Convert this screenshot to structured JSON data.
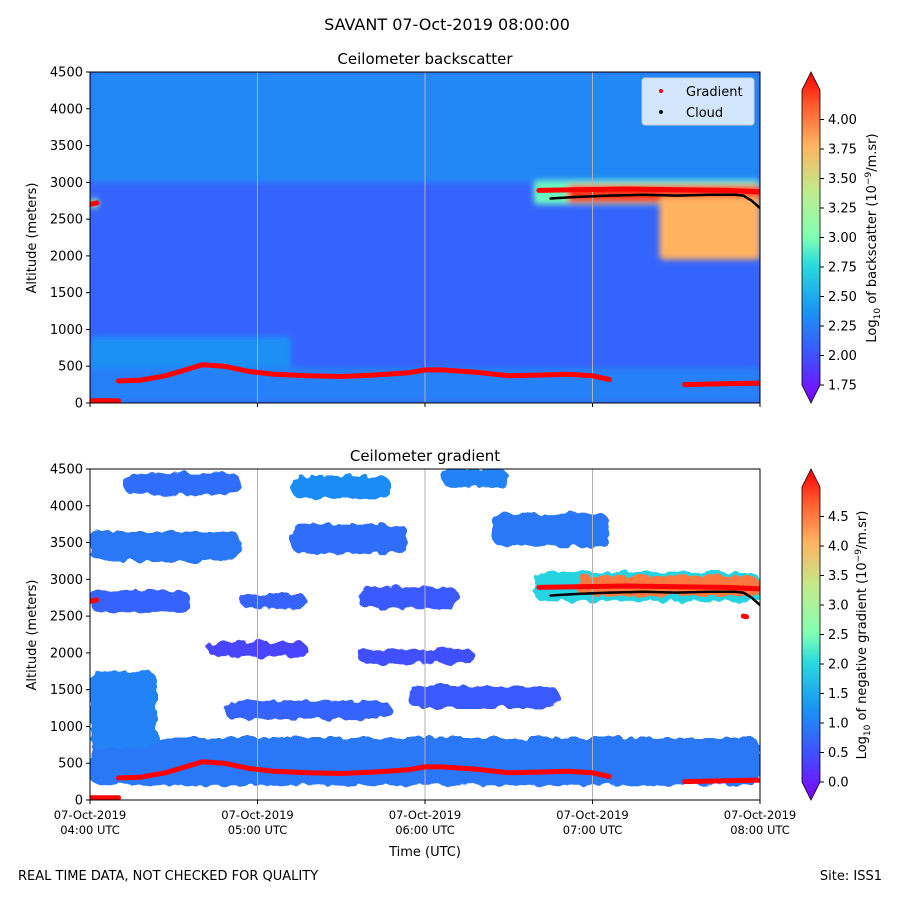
{
  "suptitle": "SAVANT 07-Oct-2019 08:00:00",
  "footer": {
    "left": "REAL TIME DATA, NOT CHECKED FOR QUALITY",
    "right": "Site: ISS1"
  },
  "colors": {
    "gradient_marker": "#ff0000",
    "cloud_marker": "#000000",
    "grid": "#b0b0b0"
  },
  "chart_data": [
    {
      "type": "heatmap",
      "title": "Ceilometer backscatter",
      "ylabel": "Altitude (meters)",
      "ylim": [
        0,
        4500
      ],
      "yticks": [
        0,
        500,
        1000,
        1500,
        2000,
        2500,
        3000,
        3500,
        4000,
        4500
      ],
      "xlim_hours": [
        4,
        8
      ],
      "xticks_hours": [
        4,
        5,
        6,
        7,
        8
      ],
      "xtick_labels_visible": false,
      "colorbar": {
        "label_parts": [
          "Log",
          "10",
          " of backscatter (10",
          "−9",
          "/m.sr)"
        ],
        "range": [
          1.75,
          4.25
        ],
        "ticks": [
          "1.75",
          "2.00",
          "2.25",
          "2.50",
          "2.75",
          "3.00",
          "3.25",
          "3.50",
          "3.75",
          "4.00"
        ]
      },
      "legend": {
        "placement": "top-right",
        "entries": [
          {
            "label": "Gradient",
            "color": "#ff0000"
          },
          {
            "label": "Cloud",
            "color": "#000000"
          }
        ]
      },
      "background_log10": 2.2,
      "field_log10": [
        {
          "name": "upper-haze",
          "t": [
            4.0,
            8.0
          ],
          "alt": [
            3000,
            4500
          ],
          "value": 2.38
        },
        {
          "name": "morning-haze",
          "t": [
            4.0,
            5.2
          ],
          "alt": [
            0,
            900
          ],
          "value": 2.42
        },
        {
          "name": "boundary-layer",
          "t": [
            4.0,
            8.0
          ],
          "alt": [
            0,
            480
          ],
          "value": 2.34
        },
        {
          "name": "early-cloud",
          "t": [
            4.0,
            4.05
          ],
          "alt": [
            2650,
            2780
          ],
          "value": 3.3
        },
        {
          "name": "cloud-halo",
          "t": [
            6.65,
            8.0
          ],
          "alt": [
            2700,
            3020
          ],
          "value": 2.95
        },
        {
          "name": "cloud-core",
          "t": [
            6.85,
            8.0
          ],
          "alt": [
            2720,
            2960
          ],
          "value": 4.1
        },
        {
          "name": "cloud-fallstreak",
          "t": [
            7.4,
            8.0
          ],
          "alt": [
            1950,
            2800
          ],
          "value": 3.7
        }
      ],
      "series": [
        {
          "name": "Gradient",
          "color": "#ff0000",
          "segments": [
            {
              "t": [
                4.0,
                4.17
              ],
              "alt": [
                30,
                30
              ]
            },
            {
              "t": [
                4.0,
                4.04
              ],
              "alt": [
                2700,
                2720
              ]
            },
            {
              "t": [
                4.17,
                4.3,
                4.45,
                4.6,
                4.67,
                4.8,
                4.95,
                5.1,
                5.3,
                5.5,
                5.7,
                5.9,
                6.0,
                6.1,
                6.3,
                6.5,
                6.7,
                6.85,
                7.0,
                7.1
              ],
              "alt": [
                300,
                310,
                370,
                470,
                520,
                500,
                430,
                390,
                370,
                360,
                380,
                410,
                450,
                450,
                420,
                370,
                380,
                390,
                370,
                320
              ]
            },
            {
              "t": [
                6.68,
                6.9,
                7.2,
                7.5,
                7.8,
                8.0
              ],
              "alt": [
                2890,
                2900,
                2910,
                2900,
                2890,
                2870
              ]
            },
            {
              "t": [
                7.55,
                7.75,
                8.0
              ],
              "alt": [
                250,
                260,
                270
              ]
            }
          ]
        },
        {
          "name": "Cloud",
          "color": "#000000",
          "segments": [
            {
              "t": [
                6.75,
                6.9,
                7.1,
                7.3,
                7.5,
                7.7,
                7.85,
                7.9,
                7.95,
                8.0
              ],
              "alt": [
                2780,
                2800,
                2820,
                2830,
                2820,
                2830,
                2830,
                2820,
                2750,
                2650
              ]
            }
          ]
        }
      ]
    },
    {
      "type": "heatmap",
      "title": "Ceilometer gradient",
      "xlabel": "Time (UTC)",
      "ylabel": "Altitude (meters)",
      "ylim": [
        0,
        4500
      ],
      "yticks": [
        0,
        500,
        1000,
        1500,
        2000,
        2500,
        3000,
        3500,
        4000,
        4500
      ],
      "xlim_hours": [
        4,
        8
      ],
      "xticks_hours": [
        4,
        5,
        6,
        7,
        8
      ],
      "xtick_labels": [
        [
          "07-Oct-2019",
          "04:00 UTC"
        ],
        [
          "07-Oct-2019",
          "05:00 UTC"
        ],
        [
          "07-Oct-2019",
          "06:00 UTC"
        ],
        [
          "07-Oct-2019",
          "07:00 UTC"
        ],
        [
          "07-Oct-2019",
          "08:00 UTC"
        ]
      ],
      "colorbar": {
        "label_parts": [
          "Log",
          "10",
          " of negative gradient (10",
          "−9",
          "/m.sr)"
        ],
        "range": [
          0,
          5
        ],
        "ticks": [
          "0.0",
          "0.5",
          "1.0",
          "1.5",
          "2.0",
          "2.5",
          "3.0",
          "3.5",
          "4.0",
          "4.5"
        ]
      },
      "field_log10": [
        {
          "name": "boundary-layer-band",
          "t": [
            4.0,
            8.0
          ],
          "alt": [
            200,
            850
          ],
          "value": 1.1
        },
        {
          "name": "residual-layer",
          "t": [
            4.0,
            4.4
          ],
          "alt": [
            700,
            1750
          ],
          "value": 1.2
        },
        {
          "name": "aerosol-layer-1",
          "t": [
            4.8,
            5.8
          ],
          "alt": [
            1100,
            1350
          ],
          "value": 0.9
        },
        {
          "name": "aerosol-layer-2",
          "t": [
            5.9,
            6.8
          ],
          "alt": [
            1250,
            1550
          ],
          "value": 0.8
        },
        {
          "name": "aerosol-layer-3",
          "t": [
            5.6,
            6.3
          ],
          "alt": [
            1850,
            2050
          ],
          "value": 0.7
        },
        {
          "name": "aerosol-layer-4",
          "t": [
            4.7,
            5.3
          ],
          "alt": [
            1950,
            2150
          ],
          "value": 0.6
        },
        {
          "name": "upper-patch-1",
          "t": [
            4.0,
            4.9
          ],
          "alt": [
            3250,
            3650
          ],
          "value": 1.1
        },
        {
          "name": "upper-patch-2",
          "t": [
            5.2,
            5.9
          ],
          "alt": [
            3350,
            3750
          ],
          "value": 1.0
        },
        {
          "name": "upper-patch-3",
          "t": [
            6.4,
            7.1
          ],
          "alt": [
            3450,
            3900
          ],
          "value": 1.1
        },
        {
          "name": "upper-patch-4",
          "t": [
            4.2,
            4.9
          ],
          "alt": [
            4150,
            4450
          ],
          "value": 1.0
        },
        {
          "name": "upper-patch-5",
          "t": [
            5.2,
            5.8
          ],
          "alt": [
            4100,
            4400
          ],
          "value": 1.3
        },
        {
          "name": "upper-patch-6",
          "t": [
            6.1,
            6.5
          ],
          "alt": [
            4250,
            4500
          ],
          "value": 1.2
        },
        {
          "name": "mid-patch-1",
          "t": [
            4.0,
            4.6
          ],
          "alt": [
            2550,
            2850
          ],
          "value": 0.9
        },
        {
          "name": "mid-patch-2",
          "t": [
            5.6,
            6.2
          ],
          "alt": [
            2600,
            2900
          ],
          "value": 0.8
        },
        {
          "name": "mid-patch-3",
          "t": [
            4.9,
            5.3
          ],
          "alt": [
            2600,
            2800
          ],
          "value": 0.9
        },
        {
          "name": "cloud-halo",
          "t": [
            6.65,
            8.0
          ],
          "alt": [
            2700,
            3100
          ],
          "value": 2.0
        },
        {
          "name": "cloud-core",
          "t": [
            6.9,
            8.0
          ],
          "alt": [
            2780,
            3050
          ],
          "value": 4.3
        }
      ],
      "series": [
        {
          "name": "Gradient",
          "color": "#ff0000",
          "segments": [
            {
              "t": [
                4.0,
                4.17
              ],
              "alt": [
                30,
                30
              ]
            },
            {
              "t": [
                4.0,
                4.04
              ],
              "alt": [
                2700,
                2720
              ]
            },
            {
              "t": [
                4.17,
                4.3,
                4.45,
                4.6,
                4.67,
                4.8,
                4.95,
                5.1,
                5.3,
                5.5,
                5.7,
                5.9,
                6.0,
                6.1,
                6.3,
                6.5,
                6.7,
                6.85,
                7.0,
                7.1
              ],
              "alt": [
                300,
                310,
                370,
                470,
                520,
                500,
                430,
                390,
                370,
                360,
                380,
                410,
                450,
                450,
                420,
                370,
                380,
                390,
                370,
                320
              ]
            },
            {
              "t": [
                6.68,
                6.9,
                7.2,
                7.5,
                7.8,
                8.0
              ],
              "alt": [
                2890,
                2900,
                2910,
                2900,
                2890,
                2870
              ]
            },
            {
              "t": [
                7.55,
                7.75,
                8.0
              ],
              "alt": [
                250,
                260,
                270
              ]
            },
            {
              "t": [
                7.9,
                7.92
              ],
              "alt": [
                2500,
                2490
              ]
            }
          ]
        },
        {
          "name": "Cloud",
          "color": "#000000",
          "segments": [
            {
              "t": [
                6.75,
                6.9,
                7.1,
                7.3,
                7.5,
                7.7,
                7.85,
                7.9,
                7.95,
                8.0
              ],
              "alt": [
                2780,
                2800,
                2820,
                2830,
                2820,
                2830,
                2830,
                2820,
                2750,
                2650
              ]
            }
          ]
        }
      ]
    }
  ]
}
